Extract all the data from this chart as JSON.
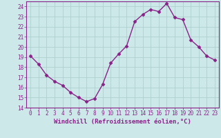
{
  "x": [
    0,
    1,
    2,
    3,
    4,
    5,
    6,
    7,
    8,
    9,
    10,
    11,
    12,
    13,
    14,
    15,
    16,
    17,
    18,
    19,
    20,
    21,
    22,
    23
  ],
  "y": [
    19.1,
    18.3,
    17.2,
    16.6,
    16.2,
    15.5,
    15.0,
    14.6,
    14.9,
    16.3,
    18.4,
    19.3,
    20.1,
    22.5,
    23.2,
    23.7,
    23.5,
    24.3,
    22.9,
    22.7,
    20.7,
    20.0,
    19.1,
    18.7
  ],
  "line_color": "#882288",
  "marker": "D",
  "marker_size": 2.5,
  "bg_color": "#cce8e8",
  "grid_color": "#aacccc",
  "xlabel": "Windchill (Refroidissement éolien,°C)",
  "ylim": [
    14,
    24.5
  ],
  "yticks": [
    14,
    15,
    16,
    17,
    18,
    19,
    20,
    21,
    22,
    23,
    24
  ],
  "xlim": [
    -0.5,
    23.5
  ],
  "xticks": [
    0,
    1,
    2,
    3,
    4,
    5,
    6,
    7,
    8,
    9,
    10,
    11,
    12,
    13,
    14,
    15,
    16,
    17,
    18,
    19,
    20,
    21,
    22,
    23
  ],
  "xtick_labels": [
    "0",
    "1",
    "2",
    "3",
    "4",
    "5",
    "6",
    "7",
    "8",
    "9",
    "10",
    "11",
    "12",
    "13",
    "14",
    "15",
    "16",
    "17",
    "18",
    "19",
    "20",
    "21",
    "22",
    "23"
  ],
  "tick_color": "#882288",
  "label_color": "#882288",
  "spine_color": "#882288",
  "tick_fontsize": 5.5,
  "xlabel_fontsize": 6.5,
  "linewidth": 1.0
}
